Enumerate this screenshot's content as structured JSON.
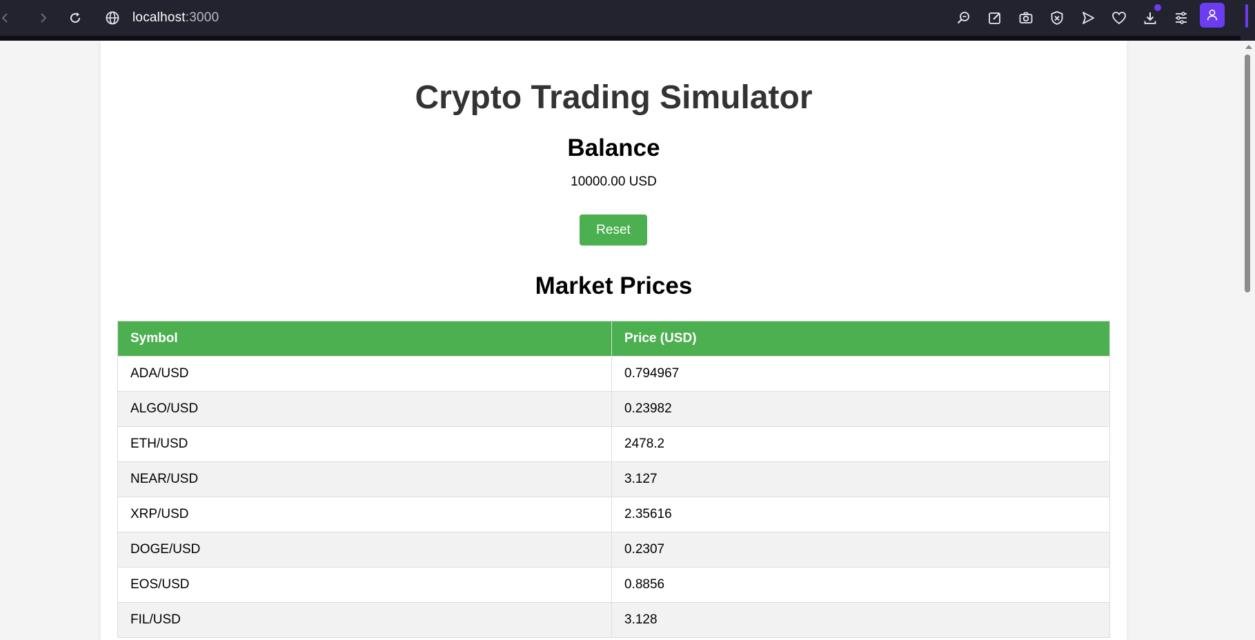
{
  "browser": {
    "url_host": "localhost",
    "url_port": ":3000",
    "icons": [
      "back-icon",
      "forward-icon",
      "reload-icon",
      "globe-icon",
      "zoom-icon",
      "edit-icon",
      "camera-icon",
      "shield-icon",
      "send-icon",
      "heart-icon",
      "download-icon",
      "settings-icon",
      "profile-icon"
    ]
  },
  "page": {
    "title": "Crypto Trading Simulator",
    "balance_heading": "Balance",
    "balance_value": "10000.00 USD",
    "reset_label": "Reset",
    "market_heading": "Market Prices",
    "table": {
      "headers": [
        "Symbol",
        "Price (USD)"
      ],
      "rows": [
        [
          "ADA/USD",
          "0.794967"
        ],
        [
          "ALGO/USD",
          "0.23982"
        ],
        [
          "ETH/USD",
          "2478.2"
        ],
        [
          "NEAR/USD",
          "3.127"
        ],
        [
          "XRP/USD",
          "2.35616"
        ],
        [
          "DOGE/USD",
          "0.2307"
        ],
        [
          "EOS/USD",
          "0.8856"
        ],
        [
          "FIL/USD",
          "3.128"
        ]
      ]
    }
  },
  "colors": {
    "accent": "#4caf50",
    "chrome": "#22232e",
    "profile": "#6b3cf0"
  }
}
